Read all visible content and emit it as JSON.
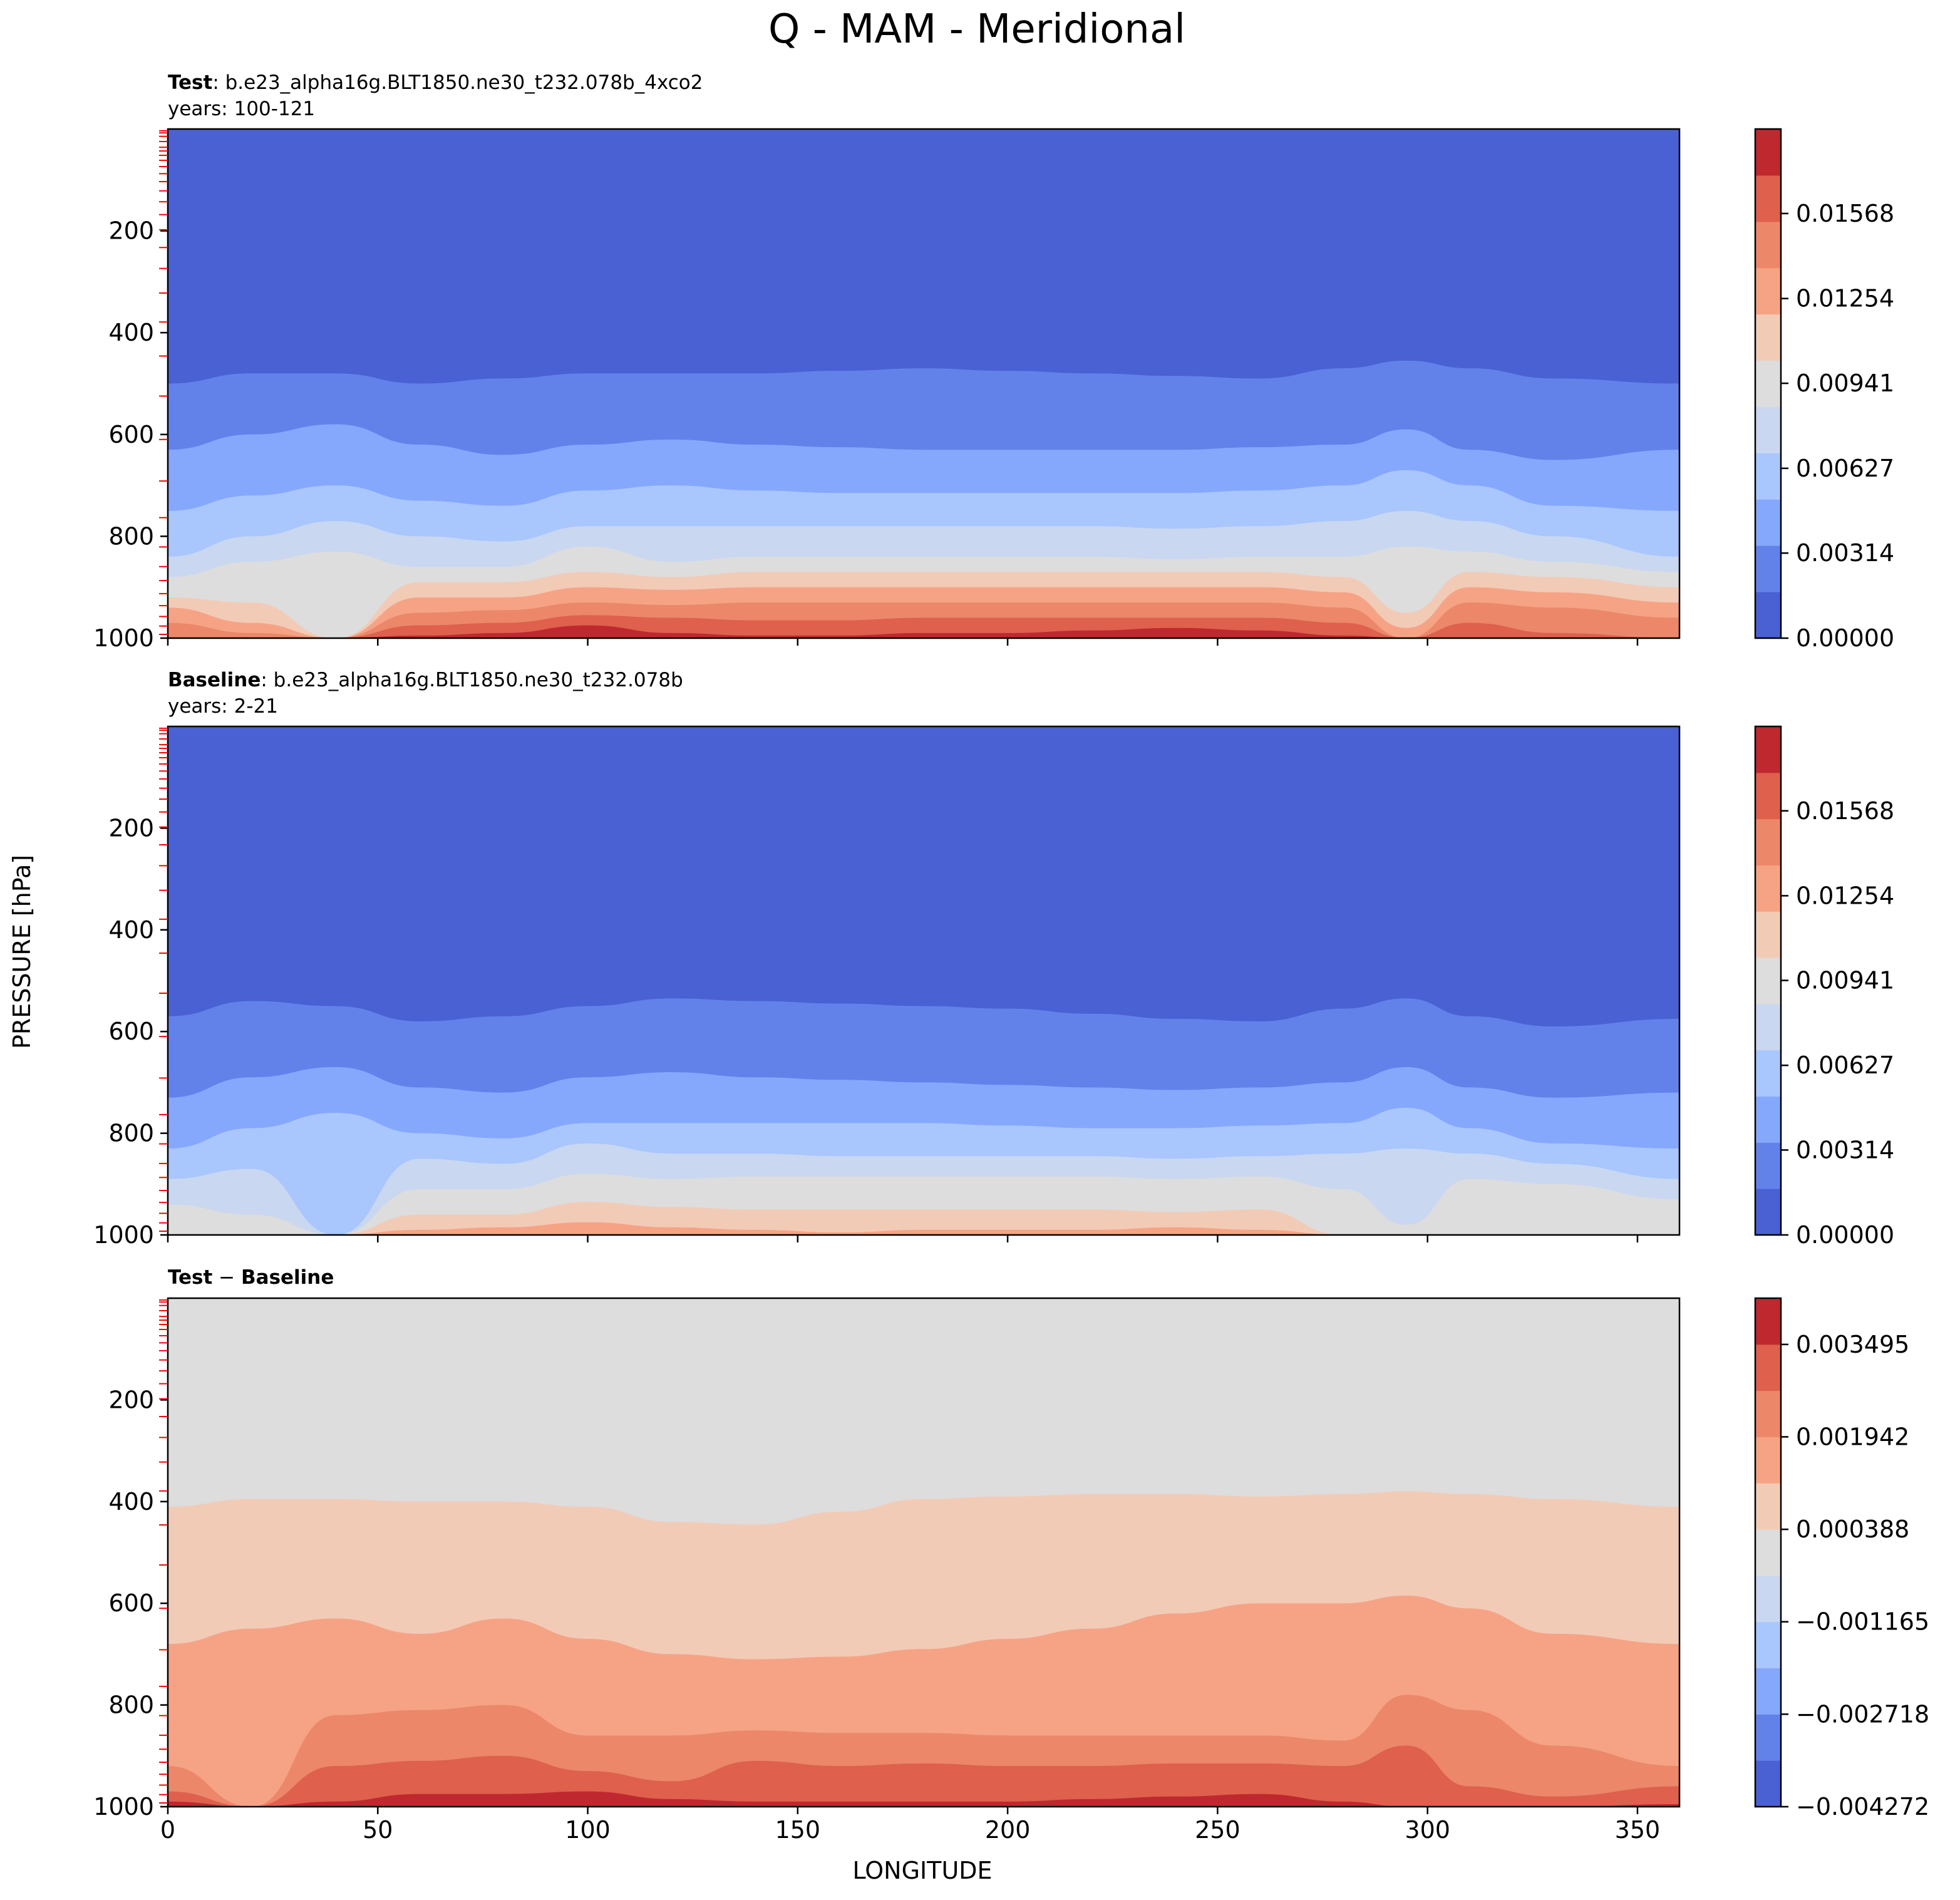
{
  "figure": {
    "title": "Q - MAM - Meridional",
    "ylabel": "PRESSURE [hPa]",
    "xlabel": "LONGITUDE"
  },
  "chart_data": [
    {
      "type": "contour",
      "panel": "test",
      "label_bold": "Test",
      "label_rest": ": b.e23_alpha16g.BLT1850.ne30_t232.078b_4xco2",
      "subtitle": "years: 100-121",
      "xlim": [
        0,
        360
      ],
      "ylim": [
        1000,
        0
      ],
      "xticks": [
        0,
        50,
        100,
        150,
        200,
        250,
        300,
        350
      ],
      "yticks": [
        200,
        400,
        600,
        800,
        1000
      ],
      "colorbar_levels": 11,
      "colorbar_ticks": [
        "0.00000",
        "0.00314",
        "0.00627",
        "0.00941",
        "0.01254",
        "0.01568"
      ],
      "colorbar_tick_values": [
        0.0,
        0.00314,
        0.00627,
        0.00941,
        0.01254,
        0.01568
      ],
      "colorbar_range": [
        0.0,
        0.0188
      ],
      "colors": [
        "#4961d2",
        "#6282ea",
        "#85a8fc",
        "#a9c6fd",
        "#c9d7f0",
        "#dddddd",
        "#f2cbb7",
        "#f6a385",
        "#ec8769",
        "#de604d",
        "#c0282f"
      ],
      "contours": [
        {
          "level": 0,
          "lon": [
            0,
            20,
            40,
            60,
            80,
            100,
            120,
            140,
            160,
            180,
            200,
            220,
            240,
            260,
            280,
            295,
            310,
            330,
            360
          ],
          "p": [
            500,
            480,
            480,
            500,
            490,
            480,
            480,
            480,
            475,
            470,
            475,
            480,
            485,
            490,
            470,
            455,
            470,
            490,
            500
          ]
        },
        {
          "level": 1,
          "lon": [
            0,
            20,
            40,
            60,
            80,
            100,
            120,
            140,
            160,
            180,
            200,
            220,
            240,
            260,
            280,
            295,
            310,
            330,
            360
          ],
          "p": [
            630,
            600,
            580,
            620,
            640,
            620,
            610,
            620,
            625,
            630,
            630,
            630,
            630,
            625,
            620,
            590,
            630,
            650,
            630
          ]
        },
        {
          "level": 2,
          "lon": [
            0,
            20,
            40,
            60,
            80,
            100,
            120,
            140,
            160,
            180,
            200,
            220,
            240,
            260,
            280,
            295,
            310,
            330,
            360
          ],
          "p": [
            750,
            720,
            700,
            730,
            740,
            710,
            700,
            710,
            715,
            715,
            715,
            715,
            715,
            710,
            700,
            670,
            700,
            740,
            750
          ]
        },
        {
          "level": 3,
          "lon": [
            0,
            20,
            40,
            60,
            80,
            100,
            120,
            140,
            160,
            180,
            200,
            220,
            240,
            260,
            280,
            295,
            310,
            330,
            360
          ],
          "p": [
            840,
            800,
            770,
            800,
            810,
            780,
            780,
            780,
            780,
            780,
            780,
            780,
            785,
            780,
            770,
            750,
            770,
            800,
            840
          ]
        },
        {
          "level": 4,
          "lon": [
            0,
            20,
            40,
            60,
            80,
            100,
            120,
            140,
            160,
            180,
            200,
            220,
            240,
            260,
            280,
            295,
            310,
            330,
            360
          ],
          "p": [
            880,
            850,
            830,
            860,
            860,
            820,
            850,
            840,
            840,
            840,
            840,
            840,
            845,
            840,
            840,
            820,
            830,
            850,
            870
          ]
        },
        {
          "level": 5,
          "lon": [
            0,
            20,
            40,
            60,
            80,
            100,
            120,
            140,
            160,
            180,
            200,
            220,
            240,
            260,
            280,
            295,
            310,
            330,
            360
          ],
          "p": [
            920,
            930,
            1000,
            890,
            890,
            870,
            880,
            870,
            870,
            870,
            870,
            870,
            870,
            870,
            880,
            950,
            870,
            880,
            900
          ]
        },
        {
          "level": 6,
          "lon": [
            0,
            20,
            40,
            60,
            80,
            100,
            120,
            140,
            160,
            180,
            200,
            220,
            240,
            260,
            280,
            295,
            310,
            330,
            360
          ],
          "p": [
            940,
            970,
            1000,
            920,
            920,
            900,
            905,
            900,
            900,
            900,
            900,
            900,
            900,
            900,
            910,
            980,
            900,
            910,
            930
          ]
        },
        {
          "level": 7,
          "lon": [
            0,
            20,
            40,
            60,
            80,
            100,
            120,
            140,
            160,
            180,
            200,
            220,
            240,
            260,
            280,
            295,
            310,
            330,
            360
          ],
          "p": [
            970,
            990,
            1000,
            950,
            945,
            930,
            935,
            930,
            930,
            930,
            930,
            930,
            930,
            930,
            940,
            1000,
            930,
            940,
            960
          ]
        },
        {
          "level": 8,
          "lon": [
            0,
            20,
            40,
            60,
            80,
            100,
            120,
            140,
            160,
            180,
            200,
            220,
            240,
            260,
            280,
            295,
            310,
            330,
            360
          ],
          "p": [
            1000,
            1000,
            1000,
            975,
            970,
            955,
            960,
            965,
            965,
            960,
            960,
            960,
            960,
            960,
            970,
            1000,
            970,
            990,
            1000
          ]
        },
        {
          "level": 9,
          "lon": [
            0,
            20,
            40,
            60,
            80,
            100,
            120,
            140,
            160,
            180,
            200,
            220,
            240,
            260,
            280,
            295,
            310,
            330,
            360
          ],
          "p": [
            1000,
            1000,
            1000,
            995,
            990,
            975,
            990,
            995,
            995,
            990,
            990,
            985,
            980,
            985,
            995,
            1000,
            1000,
            1000,
            1000
          ]
        }
      ]
    },
    {
      "type": "contour",
      "panel": "baseline",
      "label_bold": "Baseline",
      "label_rest": ": b.e23_alpha16g.BLT1850.ne30_t232.078b",
      "subtitle": "years: 2-21",
      "xlim": [
        0,
        360
      ],
      "ylim": [
        1000,
        0
      ],
      "xticks": [
        0,
        50,
        100,
        150,
        200,
        250,
        300,
        350
      ],
      "yticks": [
        200,
        400,
        600,
        800,
        1000
      ],
      "colorbar_levels": 11,
      "colorbar_ticks": [
        "0.00000",
        "0.00314",
        "0.00627",
        "0.00941",
        "0.01254",
        "0.01568"
      ],
      "colorbar_tick_values": [
        0.0,
        0.00314,
        0.00627,
        0.00941,
        0.01254,
        0.01568
      ],
      "colorbar_range": [
        0.0,
        0.0188
      ],
      "colors": [
        "#4961d2",
        "#6282ea",
        "#85a8fc",
        "#a9c6fd",
        "#c9d7f0",
        "#dddddd",
        "#f2cbb7",
        "#f6a385",
        "#ec8769",
        "#de604d",
        "#c0282f"
      ],
      "contours": [
        {
          "level": 0,
          "lon": [
            0,
            20,
            40,
            60,
            80,
            100,
            120,
            140,
            160,
            180,
            200,
            220,
            240,
            260,
            280,
            295,
            310,
            330,
            360
          ],
          "p": [
            570,
            540,
            550,
            580,
            570,
            550,
            535,
            540,
            545,
            550,
            555,
            565,
            575,
            580,
            555,
            535,
            570,
            590,
            575
          ]
        },
        {
          "level": 1,
          "lon": [
            0,
            20,
            40,
            60,
            80,
            100,
            120,
            140,
            160,
            180,
            200,
            220,
            240,
            260,
            280,
            295,
            310,
            330,
            360
          ],
          "p": [
            730,
            690,
            670,
            710,
            720,
            690,
            680,
            690,
            695,
            700,
            705,
            710,
            715,
            710,
            700,
            670,
            710,
            730,
            720
          ]
        },
        {
          "level": 2,
          "lon": [
            0,
            20,
            40,
            60,
            80,
            100,
            120,
            140,
            160,
            180,
            200,
            220,
            240,
            260,
            280,
            295,
            310,
            330,
            360
          ],
          "p": [
            830,
            790,
            760,
            800,
            810,
            780,
            780,
            780,
            780,
            780,
            785,
            790,
            790,
            785,
            780,
            750,
            790,
            820,
            830
          ]
        },
        {
          "level": 3,
          "lon": [
            0,
            20,
            40,
            60,
            80,
            100,
            120,
            140,
            160,
            180,
            200,
            220,
            240,
            260,
            280,
            295,
            310,
            330,
            360
          ],
          "p": [
            890,
            870,
            1000,
            850,
            860,
            820,
            840,
            840,
            845,
            845,
            845,
            845,
            850,
            845,
            840,
            830,
            840,
            860,
            890
          ]
        },
        {
          "level": 4,
          "lon": [
            0,
            20,
            40,
            60,
            80,
            100,
            120,
            140,
            160,
            180,
            200,
            220,
            240,
            260,
            280,
            295,
            310,
            330,
            360
          ],
          "p": [
            940,
            960,
            1000,
            910,
            910,
            880,
            890,
            885,
            885,
            885,
            885,
            885,
            890,
            885,
            910,
            980,
            890,
            900,
            930
          ]
        },
        {
          "level": 5,
          "lon": [
            0,
            20,
            40,
            60,
            80,
            100,
            120,
            140,
            160,
            180,
            200,
            220,
            240,
            260,
            280,
            295,
            310,
            330,
            360
          ],
          "p": [
            1000,
            1000,
            1000,
            960,
            960,
            935,
            945,
            950,
            950,
            950,
            950,
            950,
            955,
            950,
            1000,
            1000,
            1000,
            1000,
            1000
          ]
        },
        {
          "level": 6,
          "lon": [
            0,
            20,
            40,
            60,
            80,
            100,
            120,
            140,
            160,
            180,
            200,
            220,
            240,
            260,
            280,
            295,
            310,
            330,
            360
          ],
          "p": [
            1000,
            1000,
            1000,
            990,
            985,
            975,
            985,
            990,
            995,
            990,
            990,
            990,
            985,
            990,
            1000,
            1000,
            1000,
            1000,
            1000
          ]
        }
      ]
    },
    {
      "type": "contour",
      "panel": "difference",
      "label_bold": "Test",
      "label_mid": " − ",
      "label_bold2": "Baseline",
      "xlim": [
        0,
        360
      ],
      "ylim": [
        1000,
        0
      ],
      "xticks": [
        0,
        50,
        100,
        150,
        200,
        250,
        300,
        350
      ],
      "yticks": [
        200,
        400,
        600,
        800,
        1000
      ],
      "colorbar_levels": 11,
      "colorbar_ticks": [
        "−0.004272",
        "−0.002718",
        "−0.001165",
        "0.000388",
        "0.001942",
        "0.003495"
      ],
      "colorbar_tick_values": [
        -0.004272,
        -0.002718,
        -0.001165,
        0.000388,
        0.001942,
        0.003495
      ],
      "colorbar_range": [
        -0.004272,
        0.004272
      ],
      "colors": [
        "#4961d2",
        "#6282ea",
        "#85a8fc",
        "#a9c6fd",
        "#c9d7f0",
        "#dddddd",
        "#f2cbb7",
        "#f6a385",
        "#ec8769",
        "#de604d",
        "#c0282f"
      ],
      "base_level": 5,
      "contours": [
        {
          "level": 6,
          "lon": [
            0,
            20,
            40,
            60,
            80,
            100,
            120,
            140,
            160,
            180,
            200,
            220,
            240,
            260,
            280,
            295,
            310,
            330,
            360
          ],
          "p": [
            410,
            395,
            395,
            400,
            400,
            410,
            440,
            445,
            420,
            395,
            390,
            385,
            385,
            390,
            385,
            380,
            385,
            395,
            410
          ]
        },
        {
          "level": 7,
          "lon": [
            0,
            20,
            40,
            60,
            80,
            100,
            120,
            140,
            160,
            180,
            200,
            220,
            240,
            260,
            280,
            295,
            310,
            330,
            360
          ],
          "p": [
            680,
            650,
            630,
            660,
            630,
            670,
            700,
            710,
            705,
            690,
            670,
            650,
            620,
            600,
            600,
            585,
            610,
            660,
            680
          ]
        },
        {
          "level": 8,
          "lon": [
            0,
            20,
            40,
            60,
            80,
            100,
            120,
            140,
            160,
            180,
            200,
            220,
            240,
            260,
            280,
            295,
            310,
            330,
            360
          ],
          "p": [
            920,
            1000,
            820,
            810,
            800,
            860,
            860,
            850,
            855,
            855,
            860,
            860,
            860,
            860,
            870,
            780,
            810,
            880,
            920
          ]
        },
        {
          "level": 9,
          "lon": [
            0,
            20,
            40,
            60,
            80,
            100,
            120,
            140,
            160,
            180,
            200,
            220,
            240,
            260,
            280,
            295,
            310,
            330,
            360
          ],
          "p": [
            970,
            1000,
            920,
            910,
            900,
            930,
            950,
            910,
            920,
            915,
            920,
            920,
            915,
            915,
            920,
            880,
            960,
            980,
            960
          ]
        },
        {
          "level": 10,
          "lon": [
            0,
            20,
            40,
            60,
            80,
            100,
            120,
            140,
            160,
            180,
            200,
            220,
            240,
            260,
            280,
            295,
            310,
            330,
            360
          ],
          "p": [
            990,
            1000,
            990,
            975,
            975,
            970,
            985,
            990,
            990,
            990,
            990,
            985,
            980,
            975,
            990,
            1000,
            1000,
            1000,
            995
          ]
        }
      ]
    }
  ]
}
